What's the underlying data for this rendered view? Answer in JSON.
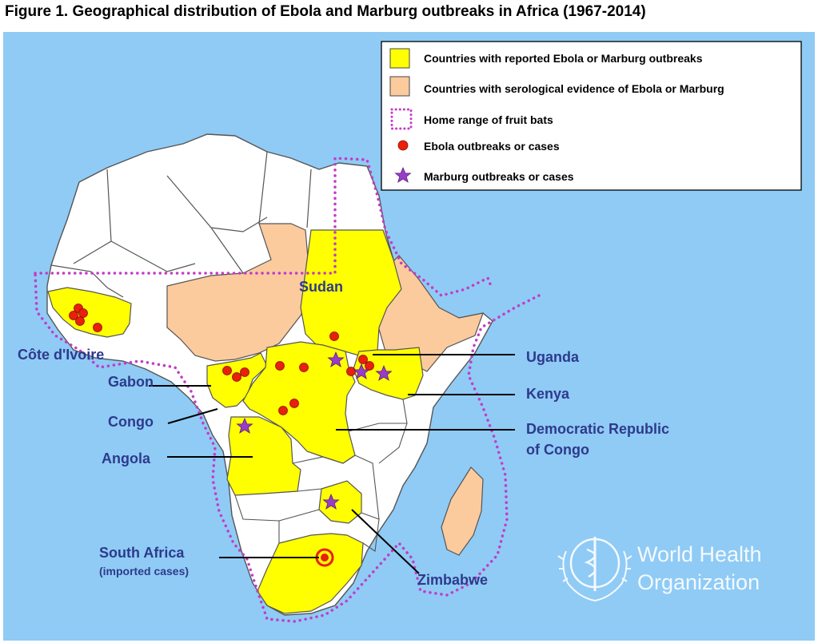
{
  "title": "Figure 1. Geographical distribution of Ebola and Marburg outbreaks in Africa (1967-2014)",
  "colors": {
    "sea": "#8FCBF5",
    "outbreak_country": "#FFFF00",
    "serology_country": "#FBCB9E",
    "other_country": "#FFFFFF",
    "border": "#555555",
    "bat_range": "#C23CC6",
    "ebola_marker": "#E8200C",
    "marburg_marker": "#9A3CC8",
    "label_text": "#2E3A8C"
  },
  "legend": {
    "items": [
      {
        "text": "Countries with reported Ebola or Marburg outbreaks",
        "symbol": "yellow-square"
      },
      {
        "text": "Countries with serological evidence of Ebola or Marburg",
        "symbol": "peach-square"
      },
      {
        "text": "Home range of fruit bats",
        "symbol": "dotted-square"
      },
      {
        "text": "Ebola outbreaks or cases",
        "symbol": "red-circle"
      },
      {
        "text": "Marburg outbreaks or cases",
        "symbol": "purple-star"
      }
    ]
  },
  "labels": {
    "sudan": "Sudan",
    "cote_divoire": "Côte d'Ivoire",
    "gabon": "Gabon",
    "congo": "Congo",
    "angola": "Angola",
    "uganda": "Uganda",
    "kenya": "Kenya",
    "drc_line1": "Democratic Republic",
    "drc_line2": "of Congo",
    "south_africa": "South Africa",
    "south_africa_note": "(imported cases)",
    "zimbabwe": "Zimbabwe"
  },
  "watermark": {
    "line1": "World Health",
    "line2": "Organization",
    "logo": "who-emblem-icon"
  }
}
